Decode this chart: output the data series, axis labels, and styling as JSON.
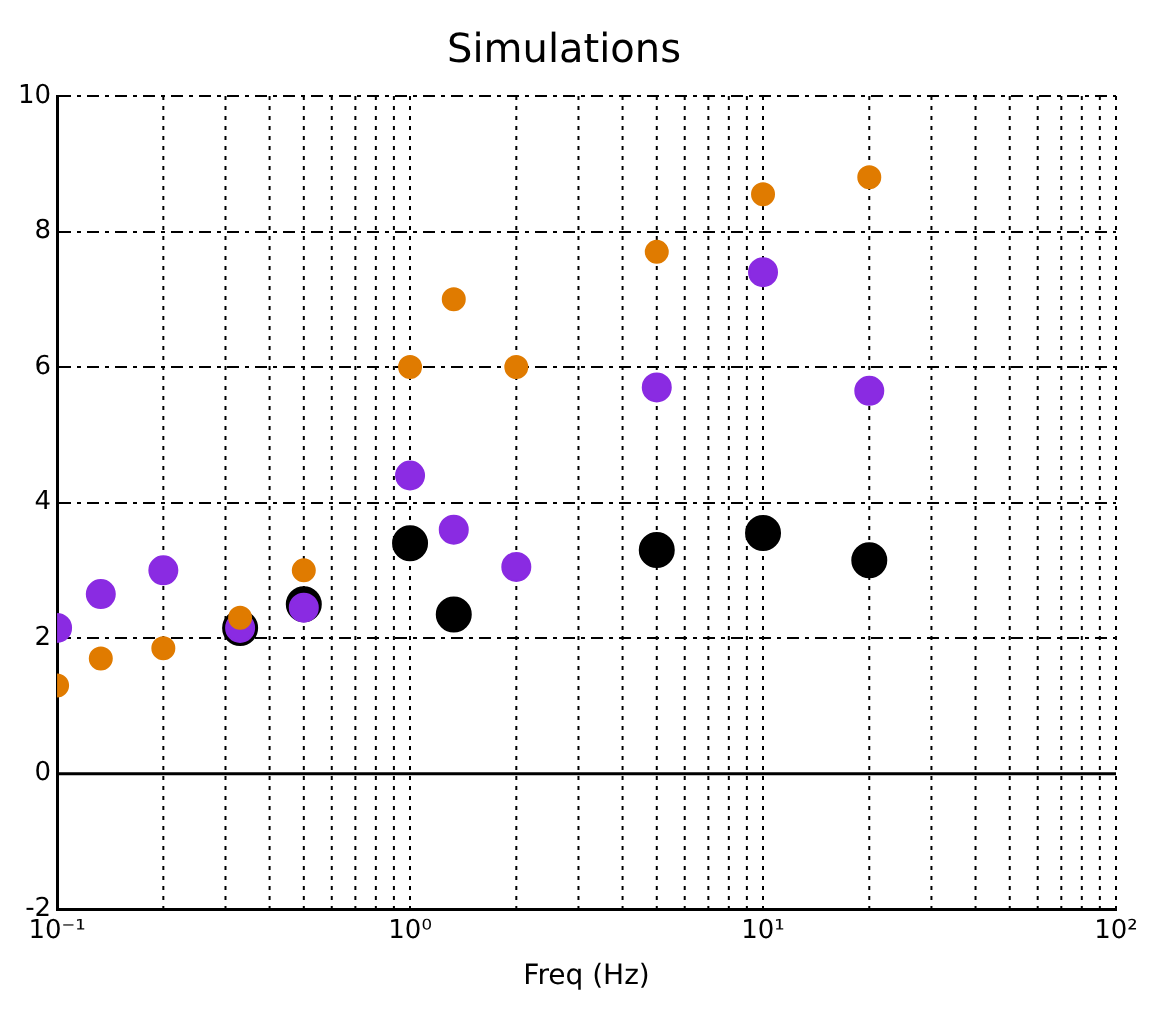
{
  "chart_data": {
    "type": "scatter",
    "title": "Simulations",
    "xlabel": "Freq (Hz)",
    "log": "x",
    "grid": true,
    "marker": "circle",
    "xlim": [
      0.1,
      100
    ],
    "xticks": [
      {
        "value": 0.1,
        "label": "10⁻¹"
      },
      {
        "value": 1,
        "label": "10⁰"
      },
      {
        "value": 10,
        "label": "10¹"
      },
      {
        "value": 100,
        "label": "10²"
      }
    ],
    "ylim": [
      -2,
      10
    ],
    "yticks": [
      -2,
      0,
      2,
      4,
      6,
      8,
      10
    ],
    "ref_lines": [
      {
        "axis": "y",
        "value": 0,
        "color": "#000000",
        "line_style": "solid"
      }
    ],
    "series": [
      {
        "color": "#e07b00",
        "x": [
          0.1,
          0.133,
          0.2,
          0.33,
          0.5,
          1,
          1.33,
          2,
          5,
          10,
          20
        ],
        "values": [
          1.3,
          1.7,
          1.85,
          2.3,
          3.0,
          6.0,
          7.0,
          6.0,
          7.7,
          8.55,
          8.8
        ]
      },
      {
        "color": "#8a2be2",
        "x": [
          0.1,
          0.133,
          0.2,
          0.33,
          0.5,
          1,
          1.33,
          2,
          5,
          10,
          20
        ],
        "values": [
          2.15,
          2.65,
          3.0,
          2.15,
          2.45,
          4.4,
          3.6,
          3.05,
          5.7,
          7.4,
          5.65
        ]
      },
      {
        "color": "#000000",
        "x": [
          0.33,
          0.5,
          1,
          1.33,
          5,
          10,
          20
        ],
        "values": [
          2.15,
          2.5,
          3.4,
          2.35,
          3.3,
          3.55,
          3.15
        ]
      }
    ]
  }
}
